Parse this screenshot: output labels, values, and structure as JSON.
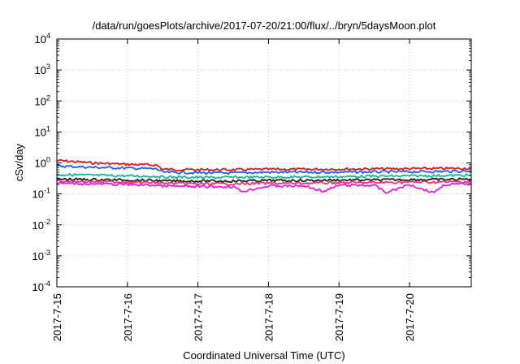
{
  "chart_data": {
    "type": "line",
    "title": "/data/run/goesPlots/archive/2017-07-20/21:00/flux/../bryn/5daysMoon.plot",
    "xlabel": "Coordinated Universal Time (UTC)",
    "ylabel": "cSv/day",
    "yscale": "log",
    "ylim": [
      0.0001,
      10000
    ],
    "y_ticks": [
      {
        "base": "10",
        "exp": "-4",
        "value": 0.0001
      },
      {
        "base": "10",
        "exp": "-3",
        "value": 0.001
      },
      {
        "base": "10",
        "exp": "-2",
        "value": 0.01
      },
      {
        "base": "10",
        "exp": "-1",
        "value": 0.1
      },
      {
        "base": "10",
        "exp": "0",
        "value": 1
      },
      {
        "base": "10",
        "exp": "1",
        "value": 10
      },
      {
        "base": "10",
        "exp": "2",
        "value": 100
      },
      {
        "base": "10",
        "exp": "3",
        "value": 1000
      },
      {
        "base": "10",
        "exp": "4",
        "value": 10000
      }
    ],
    "x_ticks": [
      "2017-7-15",
      "2017-7-16",
      "2017-7-17",
      "2017-7-18",
      "2017-7-19",
      "2017-7-20"
    ],
    "xlim": [
      "2017-07-15T00:00",
      "2017-07-20T21:00"
    ],
    "grid": true,
    "series": [
      {
        "color": "#e8141c",
        "x": [
          "2017-07-15T00:00",
          "2017-07-15T12:00",
          "2017-07-16T00:00",
          "2017-07-16T10:00",
          "2017-07-16T12:00",
          "2017-07-17T00:00",
          "2017-07-17T12:00",
          "2017-07-18T00:00",
          "2017-07-18T12:00",
          "2017-07-19T00:00",
          "2017-07-19T12:00",
          "2017-07-20T00:00",
          "2017-07-20T12:00",
          "2017-07-20T21:00"
        ],
        "values": [
          1.2,
          1.0,
          0.9,
          0.85,
          0.62,
          0.6,
          0.6,
          0.62,
          0.62,
          0.63,
          0.64,
          0.65,
          0.66,
          0.67
        ]
      },
      {
        "color": "#1f5fe0",
        "x": [
          "2017-07-15T00:00",
          "2017-07-15T12:00",
          "2017-07-16T00:00",
          "2017-07-16T10:00",
          "2017-07-16T12:00",
          "2017-07-17T00:00",
          "2017-07-17T12:00",
          "2017-07-18T00:00",
          "2017-07-18T12:00",
          "2017-07-19T00:00",
          "2017-07-19T12:00",
          "2017-07-20T00:00",
          "2017-07-20T12:00",
          "2017-07-20T21:00"
        ],
        "values": [
          0.8,
          0.72,
          0.68,
          0.64,
          0.5,
          0.48,
          0.47,
          0.5,
          0.5,
          0.5,
          0.51,
          0.52,
          0.53,
          0.55
        ]
      },
      {
        "color": "#17b890",
        "x": [
          "2017-07-15T00:00",
          "2017-07-15T12:00",
          "2017-07-16T00:00",
          "2017-07-16T10:00",
          "2017-07-16T12:00",
          "2017-07-17T00:00",
          "2017-07-17T12:00",
          "2017-07-18T00:00",
          "2017-07-18T12:00",
          "2017-07-19T00:00",
          "2017-07-19T12:00",
          "2017-07-20T00:00",
          "2017-07-20T12:00",
          "2017-07-20T21:00"
        ],
        "values": [
          0.42,
          0.4,
          0.38,
          0.37,
          0.35,
          0.34,
          0.34,
          0.35,
          0.35,
          0.36,
          0.37,
          0.38,
          0.39,
          0.4
        ]
      },
      {
        "color": "#202020",
        "x": [
          "2017-07-15T00:00",
          "2017-07-15T12:00",
          "2017-07-16T00:00",
          "2017-07-16T10:00",
          "2017-07-16T12:00",
          "2017-07-17T00:00",
          "2017-07-17T12:00",
          "2017-07-18T00:00",
          "2017-07-18T12:00",
          "2017-07-19T00:00",
          "2017-07-19T12:00",
          "2017-07-20T00:00",
          "2017-07-20T12:00",
          "2017-07-20T21:00"
        ],
        "values": [
          0.3,
          0.29,
          0.28,
          0.27,
          0.26,
          0.26,
          0.26,
          0.27,
          0.27,
          0.28,
          0.28,
          0.29,
          0.29,
          0.3
        ]
      },
      {
        "color": "#f03070",
        "x": [
          "2017-07-15T00:00",
          "2017-07-15T12:00",
          "2017-07-16T00:00",
          "2017-07-16T10:00",
          "2017-07-16T12:00",
          "2017-07-17T00:00",
          "2017-07-17T12:00",
          "2017-07-18T00:00",
          "2017-07-18T12:00",
          "2017-07-19T00:00",
          "2017-07-19T12:00",
          "2017-07-20T00:00",
          "2017-07-20T12:00",
          "2017-07-20T21:00"
        ],
        "values": [
          0.26,
          0.25,
          0.24,
          0.23,
          0.22,
          0.21,
          0.21,
          0.22,
          0.22,
          0.23,
          0.23,
          0.24,
          0.24,
          0.25
        ]
      },
      {
        "color": "#e020e0",
        "x": [
          "2017-07-15T00:00",
          "2017-07-15T12:00",
          "2017-07-16T00:00",
          "2017-07-16T10:00",
          "2017-07-16T12:00",
          "2017-07-17T00:00",
          "2017-07-17T12:00",
          "2017-07-17T15:00",
          "2017-07-18T00:00",
          "2017-07-18T12:00",
          "2017-07-18T19:00",
          "2017-07-19T00:00",
          "2017-07-19T12:00",
          "2017-07-19T16:00",
          "2017-07-20T00:00",
          "2017-07-20T08:00",
          "2017-07-20T12:00",
          "2017-07-20T21:00"
        ],
        "values": [
          0.22,
          0.21,
          0.2,
          0.19,
          0.18,
          0.17,
          0.17,
          0.12,
          0.18,
          0.18,
          0.12,
          0.19,
          0.19,
          0.11,
          0.2,
          0.11,
          0.2,
          0.21
        ]
      }
    ]
  }
}
